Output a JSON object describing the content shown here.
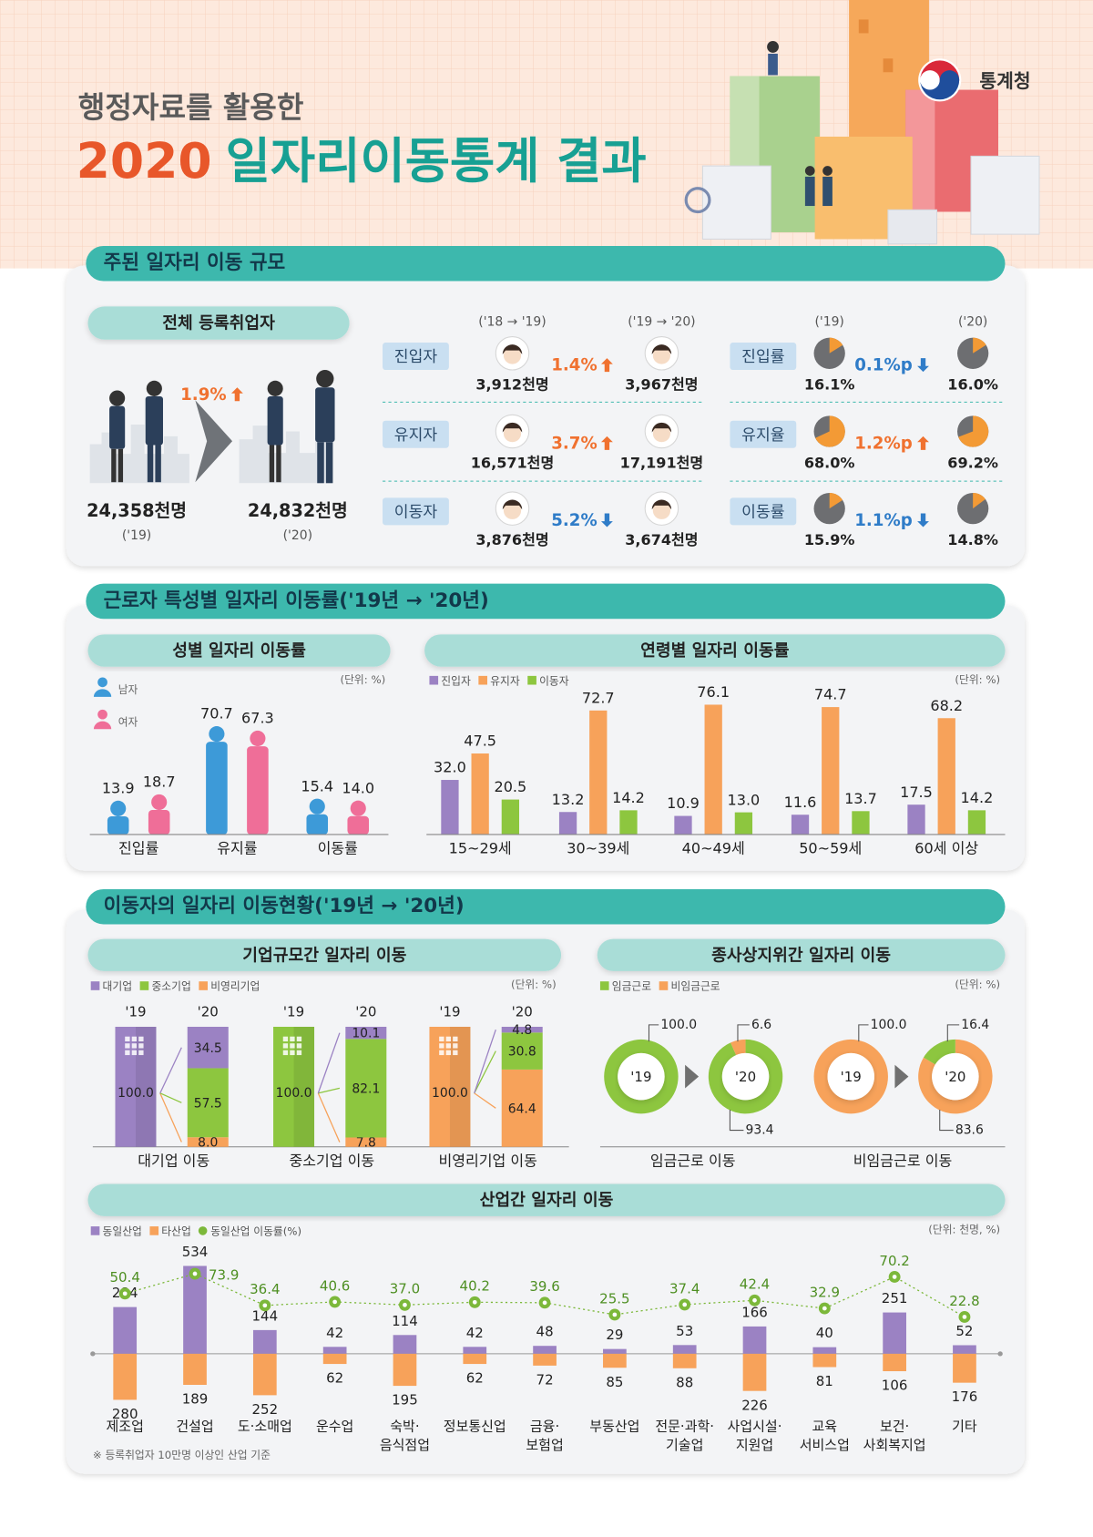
{
  "header": {
    "subtitle": "행정자료를 활용한",
    "title": [
      "2020",
      "일자리이동통계 결과"
    ],
    "agency": "통계청"
  },
  "sections": [
    {
      "title": "주된 일자리 이동 규모"
    },
    {
      "title": "근로자 특성별 일자리 이동률('19년 → '20년)"
    },
    {
      "title": "이동자의 일자리 이동현황('19년 → '20년)"
    }
  ],
  "overview": {
    "up_color": "#f0712f",
    "down_color": "#2f7cc8",
    "rate_color": "#f39a35",
    "total": {
      "title": "전체 등록취업자",
      "change": "1.9%",
      "direction": "up",
      "from": "24,358천명",
      "from_period": "('19)",
      "to": "24,832천명",
      "to_period": "('20)"
    },
    "periods": [
      "('18 → '19)",
      "('19 → '20)"
    ],
    "rate_periods": [
      "('19)",
      "('20)"
    ],
    "workers": [
      {
        "label": "진입자",
        "from": "3,912천명",
        "change": "1.4%",
        "direction": "up",
        "to": "3,967천명"
      },
      {
        "label": "유지자",
        "from": "16,571천명",
        "change": "3.7%",
        "direction": "up",
        "to": "17,191천명"
      },
      {
        "label": "이동자",
        "from": "3,876천명",
        "change": "5.2%",
        "direction": "down",
        "to": "3,674천명"
      }
    ],
    "rates": [
      {
        "label": "진입률",
        "from": {
          "value": 16.1,
          "label": "16.1%"
        },
        "change": "0.1%p",
        "direction": "down",
        "to": {
          "value": 16.0,
          "label": "16.0%"
        }
      },
      {
        "label": "유지율",
        "from": {
          "value": 68.0,
          "label": "68.0%"
        },
        "change": "1.2%p",
        "direction": "up",
        "to": {
          "value": 69.2,
          "label": "69.2%"
        }
      },
      {
        "label": "이동률",
        "from": {
          "value": 15.9,
          "label": "15.9%"
        },
        "change": "1.1%p",
        "direction": "down",
        "to": {
          "value": 14.8,
          "label": "14.8%"
        }
      }
    ]
  },
  "chart_data": [
    {
      "type": "pictogram",
      "title": "성별 일자리 이동률",
      "unit_note": "(단위: %)",
      "categories": [
        "진입률",
        "유지률",
        "이동률"
      ],
      "series": [
        {
          "name": "남자",
          "color": "#3d9ad8",
          "values": [
            13.9,
            70.7,
            15.4
          ]
        },
        {
          "name": "여자",
          "color": "#ef6e98",
          "values": [
            18.7,
            67.3,
            14.0
          ],
          "value_labels": [
            "18.7",
            "67.3",
            "14.0"
          ]
        }
      ]
    },
    {
      "type": "bar",
      "title": "연령별 일자리 이동률",
      "unit_note": "(단위: %)",
      "categories": [
        "15~29세",
        "30~39세",
        "40~49세",
        "50~59세",
        "60세 이상"
      ],
      "series": [
        {
          "name": "진입자",
          "color": "#9b82c3",
          "values": [
            32.0,
            13.2,
            10.9,
            11.6,
            17.5
          ],
          "value_labels": [
            "32.0",
            "13.2",
            "10.9",
            "11.6",
            "17.5"
          ]
        },
        {
          "name": "유지자",
          "color": "#f7a25a",
          "values": [
            47.5,
            72.7,
            76.1,
            74.7,
            68.2
          ]
        },
        {
          "name": "이동자",
          "color": "#8dc63f",
          "values": [
            20.5,
            14.2,
            13.0,
            13.7,
            14.2
          ],
          "value_labels": [
            "20.5",
            "14.2",
            "13.0",
            "13.7",
            "14.2"
          ]
        }
      ]
    },
    {
      "type": "stacked_bar",
      "title": "기업규모간 일자리 이동",
      "unit_note": "(단위: %)",
      "periods": [
        "'19",
        "'20"
      ],
      "categories": [
        "대기업 이동",
        "중소기업 이동",
        "비영리기업 이동"
      ],
      "base_values": [
        100.0,
        100.0,
        100.0
      ],
      "base_labels": [
        "100.0",
        "100.0",
        "100.0"
      ],
      "series": [
        {
          "name": "대기업",
          "color": "#9b82c3",
          "values": [
            34.5,
            10.1,
            4.8
          ]
        },
        {
          "name": "중소기업",
          "color": "#8dc63f",
          "values": [
            57.5,
            82.1,
            30.8
          ]
        },
        {
          "name": "비영리기업",
          "color": "#f7a25a",
          "values": [
            8.0,
            7.8,
            64.4
          ],
          "value_labels": [
            "8.0",
            "7.8",
            "64.4"
          ]
        }
      ]
    },
    {
      "type": "donut",
      "title": "종사상지위간 일자리 이동",
      "unit_note": "(단위: %)",
      "periods": [
        "'19",
        "'20"
      ],
      "categories": [
        "임금근로 이동",
        "비임금근로 이동"
      ],
      "base_values": [
        100.0,
        100.0
      ],
      "base_labels": [
        "100.0",
        "100.0"
      ],
      "series": [
        {
          "name": "임금근로",
          "color": "#8dc63f",
          "values": [
            93.4,
            16.4
          ]
        },
        {
          "name": "비임금근로",
          "color": "#f7a25a",
          "values": [
            6.6,
            83.6
          ]
        }
      ]
    },
    {
      "type": "diverging_bar",
      "title": "산업간 일자리 이동",
      "unit_note": "(단위: 천명, %)",
      "categories": [
        [
          "제조업"
        ],
        [
          "건설업"
        ],
        [
          "도·소매업"
        ],
        [
          "운수업"
        ],
        [
          "숙박·",
          "음식점업"
        ],
        [
          "정보통신업"
        ],
        [
          "금융·",
          "보험업"
        ],
        [
          "부동산업"
        ],
        [
          "전문·과학·",
          "기술업"
        ],
        [
          "사업시설·",
          "지원업"
        ],
        [
          "교육",
          "서비스업"
        ],
        [
          "보건·",
          "사회복지업"
        ],
        [
          "기타"
        ]
      ],
      "series": [
        {
          "name": "동일산업",
          "color": "#9b82c3",
          "values": [
            284,
            534,
            144,
            42,
            114,
            42,
            48,
            29,
            53,
            166,
            40,
            251,
            52
          ]
        },
        {
          "name": "타산업",
          "color": "#f7a25a",
          "values": [
            280,
            189,
            252,
            62,
            195,
            62,
            72,
            85,
            88,
            226,
            81,
            106,
            176
          ]
        },
        {
          "name": "동일산업 이동률(%)",
          "color": "#7cb83a",
          "type": "line",
          "values": [
            50.4,
            73.9,
            36.4,
            40.6,
            37.0,
            40.2,
            39.6,
            25.5,
            37.4,
            42.4,
            32.9,
            70.2,
            22.8
          ],
          "value_labels": [
            "50.4",
            "73.9",
            "36.4",
            "40.6",
            "37.0",
            "40.2",
            "39.6",
            "25.5",
            "37.4",
            "42.4",
            "32.9",
            "70.2",
            "22.8"
          ]
        }
      ]
    }
  ],
  "footnote": "※ 등록취업자 10만명 이상인 산업 기준"
}
